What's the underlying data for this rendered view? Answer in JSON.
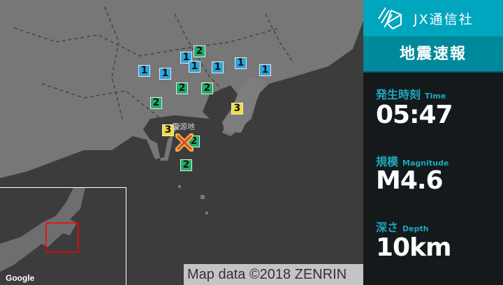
{
  "brand": {
    "name": "JX通信社",
    "logo_icon": "jx-logo-icon"
  },
  "panel": {
    "title": "地震速報",
    "time": {
      "label": "発生時刻",
      "label_en": "Time",
      "value": "05:47"
    },
    "magnitude": {
      "label": "規模",
      "label_en": "Magnitude",
      "value": "M4.6"
    },
    "depth": {
      "label": "深さ",
      "label_en": "Depth",
      "value": "10km"
    }
  },
  "map": {
    "epicenter_label": "震源地",
    "attribution": "Map data ©2018 ZENRIN",
    "google_logo": "Google",
    "intensity_colors": {
      "1": "#2ba6de",
      "2": "#1fae6a",
      "3": "#f0df3c"
    },
    "markers": [
      {
        "intensity": "2"
      },
      {
        "intensity": "1"
      },
      {
        "intensity": "1"
      },
      {
        "intensity": "1"
      },
      {
        "intensity": "1"
      },
      {
        "intensity": "1"
      },
      {
        "intensity": "1"
      },
      {
        "intensity": "1"
      },
      {
        "intensity": "2"
      },
      {
        "intensity": "2"
      },
      {
        "intensity": "2"
      },
      {
        "intensity": "3"
      },
      {
        "intensity": "3"
      },
      {
        "intensity": "2"
      },
      {
        "intensity": "2"
      }
    ]
  }
}
